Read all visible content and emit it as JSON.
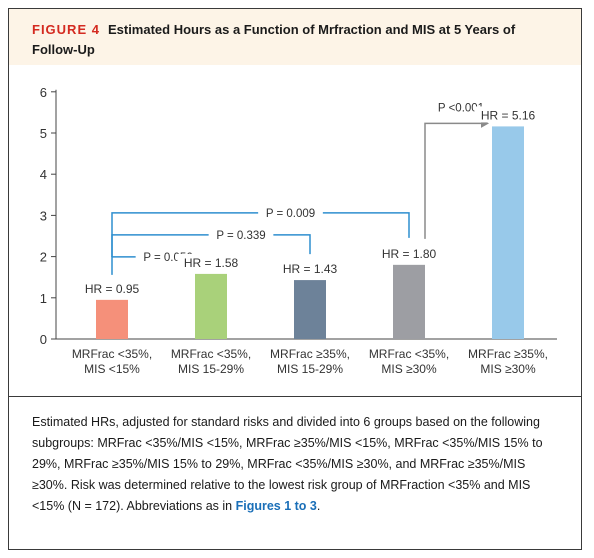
{
  "figure": {
    "label": "FIGURE 4",
    "title": "Estimated Hours as a Function of Mrfraction and MIS at 5 Years of Follow-Up"
  },
  "chart_data": {
    "type": "bar",
    "categories": [
      [
        "MRFrac <35%,",
        "MIS <15%"
      ],
      [
        "MRFrac <35%,",
        "MIS 15-29%"
      ],
      [
        "MRFrac ≥35%,",
        "MIS 15-29%"
      ],
      [
        "MRFrac <35%,",
        "MIS ≥30%"
      ],
      [
        "MRFrac ≥35%,",
        "MIS ≥30%"
      ]
    ],
    "values": [
      0.95,
      1.58,
      1.43,
      1.8,
      5.16
    ],
    "bar_labels": [
      "HR = 0.95",
      "HR = 1.58",
      "HR = 1.43",
      "HR = 1.80",
      "HR = 5.16"
    ],
    "bar_colors": [
      "#f5907a",
      "#a9d17a",
      "#6d8299",
      "#9d9ea3",
      "#98c9ea"
    ],
    "ylim": [
      0,
      6
    ],
    "yticks": [
      0,
      1,
      2,
      3,
      4,
      5,
      6
    ],
    "comparisons": [
      {
        "label": "P = 0.056",
        "from": 0,
        "to": 1,
        "color": "#2e8fcf"
      },
      {
        "label": "P = 0.339",
        "from": 0,
        "to": 2,
        "color": "#2e8fcf"
      },
      {
        "label": "P = 0.009",
        "from": 0,
        "to": 3,
        "color": "#2e8fcf"
      },
      {
        "label": "P <0.001",
        "from": 3,
        "to": 4,
        "color": "#8a8a8a"
      }
    ]
  },
  "caption": {
    "text": "Estimated HRs, adjusted for standard risks and divided into 6 groups based on the following subgroups: MRFrac <35%/MIS <15%, MRFrac ≥35%/MIS <15%, MRFrac <35%/MIS 15% to 29%, MRFrac ≥35%/MIS 15% to 29%, MRFrac <35%/MIS ≥30%, and MRFrac ≥35%/MIS ≥30%. Risk was determined relative to the lowest risk group of MRFraction <35% and MIS <15% (N = 172). Abbreviations as in ",
    "link": "Figures 1 to 3",
    "end": "."
  }
}
